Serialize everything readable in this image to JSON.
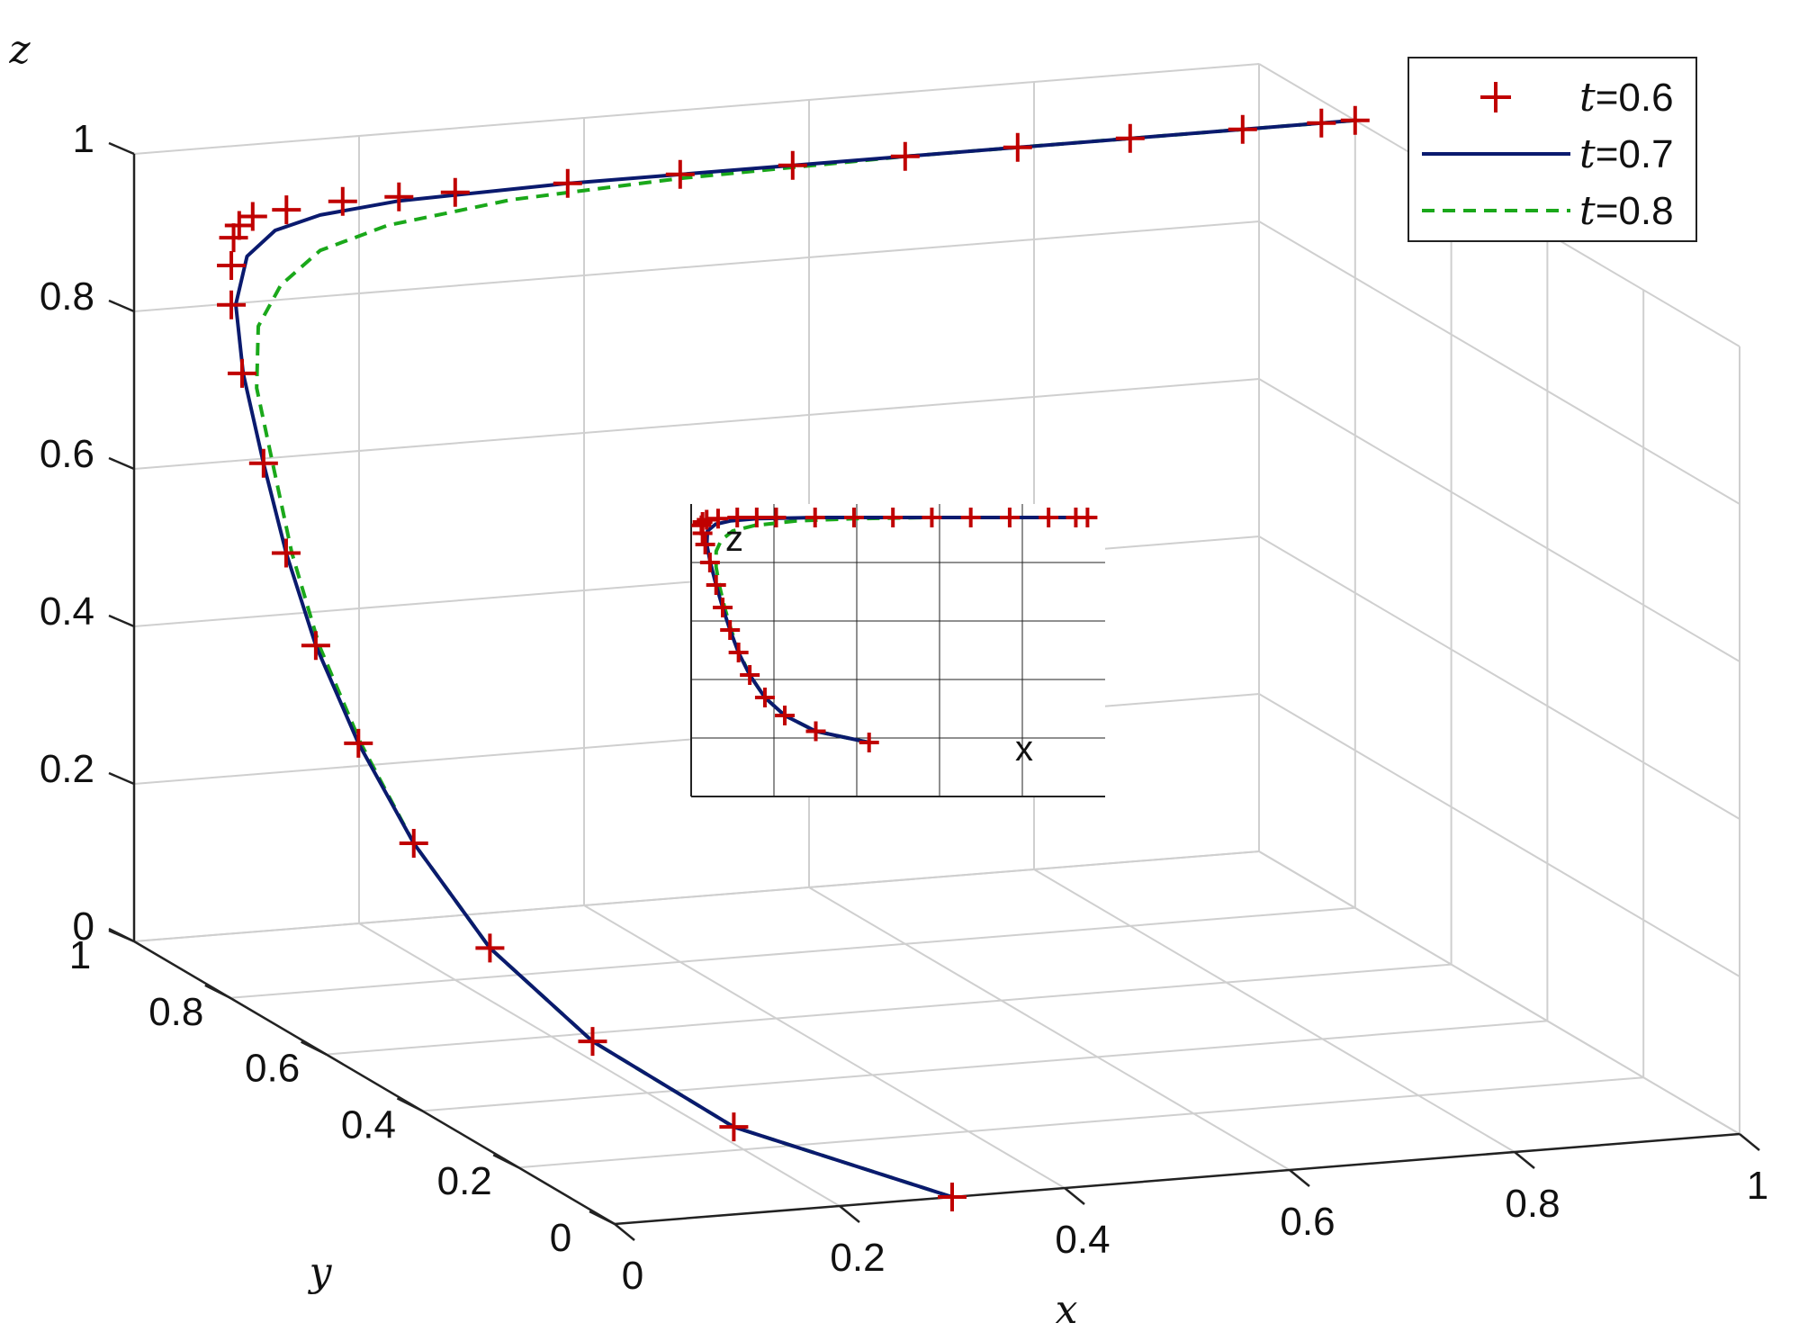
{
  "chart_data": {
    "type": "line",
    "projection": "3d",
    "xlabel": "x",
    "ylabel": "y",
    "zlabel": "z",
    "xlim": [
      0,
      1
    ],
    "ylim": [
      0,
      1
    ],
    "zlim": [
      0,
      1
    ],
    "x_ticks": [
      "0",
      "0.2",
      "0.4",
      "0.6",
      "0.8",
      "1"
    ],
    "y_ticks": [
      "0",
      "0.2",
      "0.4",
      "0.6",
      "0.8",
      "1"
    ],
    "z_ticks": [
      "0",
      "0.2",
      "0.4",
      "0.6",
      "0.8",
      "1"
    ],
    "grid": true,
    "legend_position": "top-right",
    "series": [
      {
        "name": "t=0.6",
        "name_var": "t",
        "name_val": "=0.6",
        "style": "markers-plus",
        "color": "#c00000",
        "x": [
          0.3,
          0.17,
          0.1,
          0.06,
          0.035,
          0.02,
          0.012,
          0.007,
          0.004,
          0.002,
          0.001,
          0.001,
          0.003,
          0.008,
          0.02,
          0.05,
          0.1,
          0.15,
          0.2,
          0.3,
          0.4,
          0.5,
          0.6,
          0.7,
          0.8,
          0.9,
          0.97,
          1.0
        ],
        "y": [
          0.0,
          0.15,
          0.28,
          0.4,
          0.5,
          0.58,
          0.65,
          0.7,
          0.74,
          0.78,
          0.8,
          0.8,
          0.8,
          0.8,
          0.8,
          0.8,
          0.8,
          0.8,
          0.8,
          0.8,
          0.8,
          0.8,
          0.8,
          0.8,
          0.8,
          0.8,
          0.8,
          0.8
        ],
        "z": [
          0.0,
          0.05,
          0.12,
          0.2,
          0.3,
          0.4,
          0.5,
          0.6,
          0.7,
          0.8,
          0.88,
          0.93,
          0.965,
          0.98,
          0.99,
          0.995,
          1.0,
          1.0,
          1.0,
          1.0,
          1.0,
          1.0,
          1.0,
          1.0,
          1.0,
          1.0,
          1.0,
          1.0
        ]
      },
      {
        "name": "t=0.7",
        "name_var": "t",
        "name_val": "=0.7",
        "style": "solid",
        "color": "#0a1a6e",
        "x": [
          0.3,
          0.17,
          0.1,
          0.06,
          0.035,
          0.02,
          0.012,
          0.007,
          0.004,
          0.003,
          0.005,
          0.015,
          0.04,
          0.08,
          0.15,
          0.3,
          0.5,
          0.7,
          0.9,
          1.0
        ],
        "y": [
          0.0,
          0.15,
          0.28,
          0.4,
          0.5,
          0.58,
          0.65,
          0.7,
          0.74,
          0.78,
          0.8,
          0.8,
          0.8,
          0.8,
          0.8,
          0.8,
          0.8,
          0.8,
          0.8,
          0.8
        ],
        "z": [
          0.0,
          0.05,
          0.12,
          0.2,
          0.3,
          0.4,
          0.5,
          0.6,
          0.7,
          0.8,
          0.88,
          0.94,
          0.97,
          0.985,
          0.995,
          1.0,
          1.0,
          1.0,
          1.0,
          1.0
        ]
      },
      {
        "name": "t=0.8",
        "name_var": "t",
        "name_val": "=0.8",
        "style": "dashed",
        "color": "#1aa81a",
        "x": [
          0.3,
          0.17,
          0.1,
          0.06,
          0.035,
          0.022,
          0.015,
          0.012,
          0.012,
          0.015,
          0.025,
          0.045,
          0.08,
          0.14,
          0.25,
          0.4,
          0.6,
          0.8,
          1.0
        ],
        "y": [
          0.0,
          0.15,
          0.28,
          0.4,
          0.5,
          0.58,
          0.65,
          0.7,
          0.74,
          0.78,
          0.8,
          0.8,
          0.8,
          0.8,
          0.8,
          0.8,
          0.8,
          0.8,
          0.8
        ],
        "z": [
          0.0,
          0.05,
          0.12,
          0.2,
          0.3,
          0.4,
          0.5,
          0.6,
          0.7,
          0.78,
          0.85,
          0.9,
          0.94,
          0.965,
          0.985,
          0.995,
          1.0,
          1.0,
          1.0
        ]
      }
    ],
    "inset": {
      "view": "x-z projection",
      "labels": [
        "z",
        "x"
      ]
    }
  }
}
